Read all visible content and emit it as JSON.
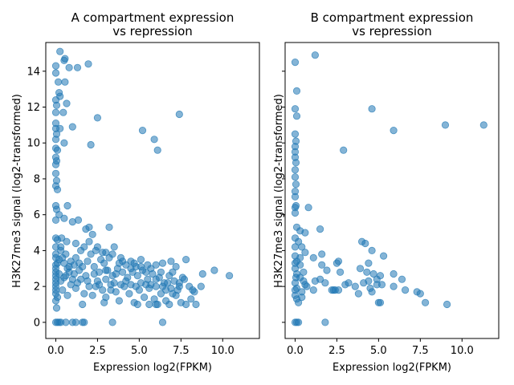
{
  "chart_data": [
    {
      "type": "scatter",
      "title": [
        "A compartment expression",
        "vs repression"
      ],
      "xlabel": "Expression log2(FPKM)",
      "ylabel": "H3K27me3 signal (log2-transformed)",
      "xlim": [
        -0.6,
        12.2
      ],
      "ylim": [
        -0.9,
        15.6
      ],
      "xticks": [
        0.0,
        2.5,
        5.0,
        7.5,
        10.0
      ],
      "xtick_labels": [
        "0.0",
        "2.5",
        "5.0",
        "7.5",
        "10.0"
      ],
      "yticks": [
        0,
        2,
        4,
        6,
        8,
        10,
        12,
        14
      ],
      "ytick_labels": [
        "0",
        "2",
        "4",
        "6",
        "8",
        "10",
        "12",
        "14"
      ],
      "point_color": "#1f77b4",
      "grid": false,
      "points": [
        [
          0.25,
          15.1
        ],
        [
          0.5,
          14.6
        ],
        [
          0.55,
          14.7
        ],
        [
          0.0,
          14.3
        ],
        [
          1.3,
          14.2
        ],
        [
          0.0,
          13.9
        ],
        [
          1.95,
          14.4
        ],
        [
          0.8,
          14.2
        ],
        [
          0.15,
          13.4
        ],
        [
          0.55,
          13.4
        ],
        [
          0.2,
          12.8
        ],
        [
          0.25,
          12.6
        ],
        [
          0.0,
          12.4
        ],
        [
          0.05,
          12.1
        ],
        [
          0.65,
          12.2
        ],
        [
          0.0,
          11.7
        ],
        [
          0.45,
          11.7
        ],
        [
          2.5,
          11.4
        ],
        [
          7.4,
          11.6
        ],
        [
          0.0,
          11.1
        ],
        [
          0.0,
          10.8
        ],
        [
          0.05,
          10.5
        ],
        [
          0.0,
          10.2
        ],
        [
          1.0,
          10.9
        ],
        [
          0.25,
          10.8
        ],
        [
          5.2,
          10.7
        ],
        [
          0.5,
          10.0
        ],
        [
          0.0,
          9.7
        ],
        [
          0.1,
          9.6
        ],
        [
          2.1,
          9.9
        ],
        [
          5.9,
          10.2
        ],
        [
          6.1,
          9.6
        ],
        [
          0.0,
          9.2
        ],
        [
          0.05,
          9.0
        ],
        [
          0.0,
          8.8
        ],
        [
          0.0,
          8.3
        ],
        [
          0.05,
          7.9
        ],
        [
          0.0,
          7.6
        ],
        [
          0.1,
          7.4
        ],
        [
          0.0,
          6.5
        ],
        [
          0.05,
          6.3
        ],
        [
          0.7,
          6.5
        ],
        [
          0.2,
          6.0
        ],
        [
          0.5,
          5.8
        ],
        [
          0.0,
          5.7
        ],
        [
          1.0,
          5.6
        ],
        [
          1.35,
          5.7
        ],
        [
          1.8,
          5.2
        ],
        [
          2.0,
          5.3
        ],
        [
          3.2,
          5.3
        ],
        [
          2.2,
          4.9
        ],
        [
          0.0,
          4.7
        ],
        [
          0.1,
          4.6
        ],
        [
          0.35,
          4.7
        ],
        [
          0.65,
          4.5
        ],
        [
          1.2,
          4.4
        ],
        [
          1.7,
          4.2
        ],
        [
          2.5,
          4.2
        ],
        [
          3.5,
          4.2
        ],
        [
          0.3,
          4.2
        ],
        [
          1.5,
          4.0
        ],
        [
          2.8,
          3.9
        ],
        [
          3.9,
          3.6
        ],
        [
          4.5,
          3.4
        ],
        [
          5.1,
          3.5
        ],
        [
          6.0,
          3.2
        ],
        [
          6.9,
          3.4
        ],
        [
          7.8,
          3.5
        ],
        [
          8.8,
          2.7
        ],
        [
          9.5,
          2.9
        ],
        [
          10.4,
          2.6
        ],
        [
          0.0,
          3.8
        ],
        [
          0.2,
          3.5
        ],
        [
          0.5,
          3.3
        ],
        [
          0.8,
          3.1
        ],
        [
          1.1,
          3.2
        ],
        [
          1.4,
          2.9
        ],
        [
          1.9,
          3.4
        ],
        [
          2.3,
          3.1
        ],
        [
          2.6,
          2.8
        ],
        [
          2.9,
          3.3
        ],
        [
          3.1,
          2.9
        ],
        [
          3.4,
          2.6
        ],
        [
          3.7,
          3.0
        ],
        [
          4.0,
          2.8
        ],
        [
          4.3,
          2.5
        ],
        [
          4.6,
          2.8
        ],
        [
          4.9,
          2.6
        ],
        [
          5.2,
          2.9
        ],
        [
          5.5,
          2.4
        ],
        [
          5.8,
          2.7
        ],
        [
          6.2,
          2.5
        ],
        [
          6.5,
          2.2
        ],
        [
          6.8,
          2.6
        ],
        [
          7.1,
          2.3
        ],
        [
          7.4,
          2.0
        ],
        [
          7.7,
          2.4
        ],
        [
          8.0,
          2.0
        ],
        [
          8.3,
          1.7
        ],
        [
          8.7,
          2.0
        ],
        [
          0.0,
          3.2
        ],
        [
          0.0,
          2.8
        ],
        [
          0.0,
          2.4
        ],
        [
          0.0,
          2.0
        ],
        [
          0.0,
          1.6
        ],
        [
          0.0,
          1.2
        ],
        [
          0.05,
          0.8
        ],
        [
          0.1,
          1.4
        ],
        [
          0.3,
          2.3
        ],
        [
          0.4,
          1.8
        ],
        [
          0.6,
          2.6
        ],
        [
          0.7,
          1.5
        ],
        [
          0.9,
          2.1
        ],
        [
          1.2,
          1.9
        ],
        [
          1.5,
          2.4
        ],
        [
          1.7,
          1.6
        ],
        [
          2.0,
          2.0
        ],
        [
          2.2,
          1.5
        ],
        [
          2.5,
          2.3
        ],
        [
          2.8,
          1.8
        ],
        [
          3.0,
          1.4
        ],
        [
          3.3,
          2.1
        ],
        [
          3.6,
          1.7
        ],
        [
          3.8,
          1.2
        ],
        [
          4.1,
          2.0
        ],
        [
          4.4,
          1.6
        ],
        [
          4.7,
          1.1
        ],
        [
          5.0,
          1.8
        ],
        [
          5.3,
          1.4
        ],
        [
          5.6,
          1.9
        ],
        [
          5.9,
          1.3
        ],
        [
          6.1,
          1.0
        ],
        [
          6.3,
          1.6
        ],
        [
          6.6,
          1.2
        ],
        [
          6.9,
          1.9
        ],
        [
          7.2,
          1.5
        ],
        [
          7.5,
          1.1
        ],
        [
          7.8,
          1.0
        ],
        [
          8.1,
          1.3
        ],
        [
          8.4,
          1.0
        ],
        [
          1.6,
          1.0
        ],
        [
          2.9,
          1.1
        ],
        [
          4.9,
          1.0
        ],
        [
          5.6,
          1.0
        ],
        [
          6.0,
          1.0
        ],
        [
          6.8,
          1.0
        ],
        [
          0.0,
          0.0
        ],
        [
          0.1,
          0.0
        ],
        [
          0.2,
          0.0
        ],
        [
          0.3,
          0.0
        ],
        [
          0.6,
          0.0
        ],
        [
          1.0,
          0.0
        ],
        [
          1.2,
          0.0
        ],
        [
          1.6,
          0.0
        ],
        [
          1.7,
          0.0
        ],
        [
          3.4,
          0.0
        ],
        [
          6.4,
          0.0
        ],
        [
          0.0,
          4.2
        ],
        [
          0.0,
          3.6
        ],
        [
          0.0,
          3.0
        ],
        [
          0.0,
          2.6
        ],
        [
          0.0,
          2.2
        ],
        [
          0.0,
          1.8
        ],
        [
          0.1,
          3.3
        ],
        [
          0.2,
          2.7
        ],
        [
          0.4,
          3.6
        ],
        [
          0.5,
          2.5
        ],
        [
          0.6,
          3.8
        ],
        [
          0.8,
          2.8
        ],
        [
          0.9,
          3.4
        ],
        [
          1.0,
          2.4
        ],
        [
          1.2,
          3.6
        ],
        [
          1.3,
          2.2
        ],
        [
          1.6,
          3.1
        ],
        [
          1.8,
          2.6
        ],
        [
          2.1,
          3.8
        ],
        [
          2.4,
          2.0
        ],
        [
          2.7,
          3.5
        ],
        [
          3.0,
          2.4
        ],
        [
          3.2,
          3.6
        ],
        [
          3.5,
          2.2
        ],
        [
          3.8,
          3.3
        ],
        [
          4.2,
          2.3
        ],
        [
          4.5,
          3.0
        ],
        [
          4.8,
          2.0
        ],
        [
          5.1,
          3.1
        ],
        [
          5.4,
          2.1
        ],
        [
          5.7,
          3.0
        ],
        [
          6.0,
          2.0
        ],
        [
          6.3,
          2.8
        ],
        [
          6.6,
          1.8
        ],
        [
          7.0,
          2.8
        ],
        [
          7.3,
          1.8
        ],
        [
          7.6,
          2.5
        ],
        [
          0.3,
          4.0
        ],
        [
          0.7,
          3.0
        ],
        [
          1.1,
          2.7
        ],
        [
          1.4,
          3.3
        ],
        [
          1.9,
          2.3
        ],
        [
          2.3,
          2.7
        ],
        [
          2.6,
          2.1
        ],
        [
          3.0,
          2.9
        ],
        [
          3.3,
          1.8
        ],
        [
          3.6,
          2.7
        ],
        [
          3.9,
          2.1
        ],
        [
          4.2,
          3.2
        ],
        [
          4.5,
          2.1
        ],
        [
          4.8,
          3.1
        ],
        [
          5.1,
          2.2
        ],
        [
          5.4,
          2.8
        ],
        [
          5.7,
          2.1
        ],
        [
          6.0,
          2.4
        ],
        [
          6.4,
          2.0
        ],
        [
          6.7,
          2.2
        ],
        [
          7.0,
          1.6
        ],
        [
          7.4,
          2.2
        ],
        [
          8.2,
          1.8
        ],
        [
          2.0,
          4.5
        ],
        [
          2.4,
          4.0
        ],
        [
          3.0,
          3.9
        ],
        [
          3.4,
          3.8
        ],
        [
          4.0,
          3.4
        ],
        [
          4.7,
          3.3
        ],
        [
          5.5,
          3.2
        ],
        [
          6.4,
          3.3
        ],
        [
          7.2,
          3.1
        ]
      ]
    },
    {
      "type": "scatter",
      "title": [
        "B compartment expression",
        "vs repression"
      ],
      "xlabel": "Expression log2(FPKM)",
      "ylabel": "H3K27me3 signal (log2-transformed)",
      "xlim": [
        -0.6,
        12.2
      ],
      "ylim": [
        -0.9,
        15.6
      ],
      "xticks": [
        0.0,
        2.5,
        5.0,
        7.5,
        10.0
      ],
      "xtick_labels": [
        "0.0",
        "2.5",
        "5.0",
        "7.5",
        "10.0"
      ],
      "yticks": [
        0,
        2,
        4,
        6,
        8,
        10,
        12,
        14
      ],
      "ytick_labels": [
        "",
        "",
        "",
        "",
        "",
        "",
        "",
        ""
      ],
      "point_color": "#1f77b4",
      "grid": false,
      "points": [
        [
          0.0,
          14.5
        ],
        [
          1.2,
          14.9
        ],
        [
          0.1,
          12.9
        ],
        [
          0.0,
          11.9
        ],
        [
          0.1,
          11.5
        ],
        [
          4.6,
          11.9
        ],
        [
          9.0,
          11.0
        ],
        [
          11.3,
          11.0
        ],
        [
          5.9,
          10.7
        ],
        [
          0.0,
          10.5
        ],
        [
          0.05,
          10.1
        ],
        [
          0.0,
          9.8
        ],
        [
          0.0,
          9.5
        ],
        [
          2.9,
          9.6
        ],
        [
          0.0,
          9.2
        ],
        [
          0.05,
          8.9
        ],
        [
          0.0,
          8.5
        ],
        [
          0.0,
          8.1
        ],
        [
          0.05,
          7.7
        ],
        [
          0.0,
          7.3
        ],
        [
          0.0,
          7.0
        ],
        [
          0.05,
          6.5
        ],
        [
          0.8,
          6.4
        ],
        [
          0.0,
          6.1
        ],
        [
          0.1,
          5.3
        ],
        [
          0.3,
          5.1
        ],
        [
          0.6,
          5.0
        ],
        [
          1.5,
          5.2
        ],
        [
          0.0,
          4.7
        ],
        [
          0.2,
          4.5
        ],
        [
          0.4,
          4.2
        ],
        [
          0.6,
          3.9
        ],
        [
          1.6,
          3.8
        ],
        [
          0.0,
          3.7
        ],
        [
          0.1,
          3.4
        ],
        [
          0.3,
          3.2
        ],
        [
          1.1,
          3.6
        ],
        [
          1.6,
          3.2
        ],
        [
          2.5,
          3.3
        ],
        [
          2.6,
          3.4
        ],
        [
          4.0,
          4.5
        ],
        [
          4.2,
          4.4
        ],
        [
          4.6,
          4.0
        ],
        [
          5.3,
          3.7
        ],
        [
          0.0,
          3.0
        ],
        [
          0.1,
          2.7
        ],
        [
          0.3,
          2.5
        ],
        [
          0.5,
          2.8
        ],
        [
          1.5,
          2.4
        ],
        [
          1.9,
          2.9
        ],
        [
          2.7,
          2.8
        ],
        [
          3.9,
          3.0
        ],
        [
          4.3,
          2.8
        ],
        [
          4.7,
          2.7
        ],
        [
          5.1,
          2.6
        ],
        [
          5.9,
          2.7
        ],
        [
          6.4,
          2.4
        ],
        [
          0.0,
          2.2
        ],
        [
          0.1,
          1.9
        ],
        [
          0.4,
          1.7
        ],
        [
          0.6,
          2.1
        ],
        [
          1.2,
          2.3
        ],
        [
          1.8,
          2.2
        ],
        [
          2.2,
          1.8
        ],
        [
          2.6,
          1.8
        ],
        [
          3.0,
          2.1
        ],
        [
          3.2,
          2.2
        ],
        [
          3.6,
          2.0
        ],
        [
          4.1,
          2.2
        ],
        [
          4.5,
          1.9
        ],
        [
          4.9,
          2.1
        ],
        [
          5.2,
          2.1
        ],
        [
          5.9,
          2.0
        ],
        [
          6.6,
          1.8
        ],
        [
          7.3,
          1.7
        ],
        [
          7.5,
          1.6
        ],
        [
          0.0,
          1.5
        ],
        [
          0.1,
          1.3
        ],
        [
          0.2,
          1.1
        ],
        [
          0.4,
          1.4
        ],
        [
          1.1,
          1.8
        ],
        [
          2.4,
          1.8
        ],
        [
          3.8,
          1.6
        ],
        [
          4.6,
          1.7
        ],
        [
          5.0,
          1.1
        ],
        [
          5.1,
          1.1
        ],
        [
          7.8,
          1.1
        ],
        [
          9.1,
          1.0
        ],
        [
          0.0,
          0.0
        ],
        [
          0.1,
          0.0
        ],
        [
          0.2,
          0.0
        ],
        [
          1.8,
          0.0
        ],
        [
          0.0,
          4.2
        ],
        [
          0.0,
          3.3
        ],
        [
          0.05,
          2.5
        ],
        [
          0.0,
          1.8
        ],
        [
          0.3,
          3.6
        ],
        [
          0.5,
          2.3
        ],
        [
          4.4,
          2.3
        ],
        [
          4.9,
          2.4
        ],
        [
          0.7,
          2.0
        ],
        [
          2.3,
          1.8
        ],
        [
          4.4,
          3.3
        ],
        [
          0.0,
          6.4
        ]
      ]
    }
  ]
}
